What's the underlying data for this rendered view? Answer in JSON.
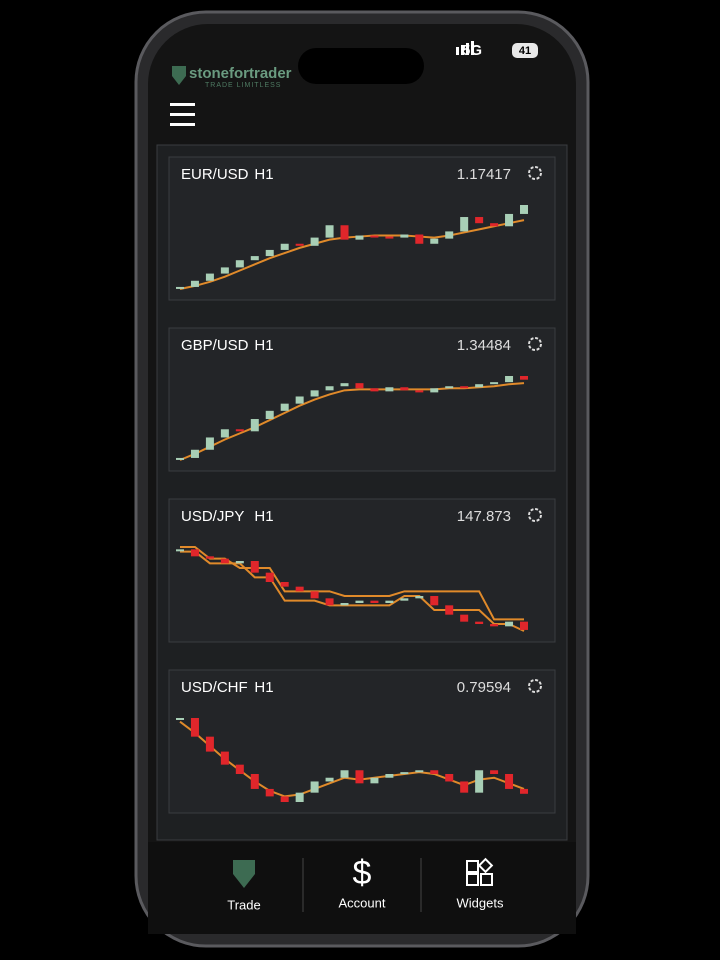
{
  "status": {
    "network": "5G",
    "battery": "41"
  },
  "header": {
    "brand": "stonefortrader",
    "tagline": "TRADE LIMITLESS"
  },
  "cards": [
    {
      "pair": "EUR/USD",
      "timeframe": "H1",
      "price": "1.17417",
      "closes": [
        1.1662,
        1.1668,
        1.1675,
        1.1681,
        1.1688,
        1.1692,
        1.1698,
        1.1704,
        1.1702,
        1.171,
        1.1722,
        1.1708,
        1.1712,
        1.1711,
        1.171,
        1.1713,
        1.1704,
        1.1709,
        1.1716,
        1.173,
        1.1724,
        1.1721,
        1.1733,
        1.17417
      ],
      "lines": [
        [
          1.166,
          1.1663,
          1.1667,
          1.1672,
          1.1678,
          1.1684,
          1.169,
          1.1695,
          1.17,
          1.1704,
          1.1708,
          1.171,
          1.1711,
          1.1712,
          1.1712,
          1.1712,
          1.1711,
          1.171,
          1.1712,
          1.1715,
          1.1718,
          1.1721,
          1.1724,
          1.1727
        ]
      ]
    },
    {
      "pair": "GBP/USD",
      "timeframe": "H1",
      "price": "1.34484",
      "closes": [
        1.3372,
        1.338,
        1.3392,
        1.34,
        1.3398,
        1.341,
        1.3418,
        1.3425,
        1.3432,
        1.3438,
        1.3442,
        1.3445,
        1.344,
        1.3437,
        1.3441,
        1.3438,
        1.3436,
        1.344,
        1.3442,
        1.3441,
        1.3444,
        1.3446,
        1.3452,
        1.34484
      ],
      "lines": [
        [
          1.337,
          1.3376,
          1.3383,
          1.339,
          1.3396,
          1.3402,
          1.3409,
          1.3416,
          1.3423,
          1.3429,
          1.3434,
          1.3438,
          1.3439,
          1.3439,
          1.3439,
          1.3439,
          1.3439,
          1.3439,
          1.344,
          1.344,
          1.3441,
          1.3442,
          1.3444,
          1.3445
        ]
      ]
    },
    {
      "pair": "USD/JPY",
      "timeframe": "H1",
      "price": "147.873",
      "closes": [
        149.6,
        149.45,
        149.4,
        149.3,
        149.35,
        149.1,
        148.9,
        148.8,
        148.7,
        148.55,
        148.4,
        148.45,
        148.5,
        148.45,
        148.5,
        148.55,
        148.6,
        148.4,
        148.2,
        148.05,
        148.0,
        147.95,
        148.05,
        147.873
      ],
      "lines": [
        [
          149.65,
          149.65,
          149.4,
          149.4,
          149.2,
          149.2,
          149.2,
          148.7,
          148.7,
          148.7,
          148.7,
          148.6,
          148.6,
          148.6,
          148.6,
          148.7,
          148.7,
          148.7,
          148.7,
          148.7,
          148.7,
          148.1,
          148.1,
          148.1
        ],
        [
          149.55,
          149.55,
          149.3,
          149.3,
          149.3,
          149.0,
          149.0,
          148.5,
          148.5,
          148.5,
          148.4,
          148.4,
          148.4,
          148.4,
          148.4,
          148.6,
          148.6,
          148.3,
          148.3,
          148.3,
          148.3,
          148.0,
          148.0,
          147.85
        ]
      ]
    },
    {
      "pair": "USD/CHF",
      "timeframe": "H1",
      "price": "0.79594",
      "closes": [
        0.8,
        0.799,
        0.7982,
        0.7975,
        0.797,
        0.7962,
        0.7958,
        0.7955,
        0.796,
        0.7966,
        0.7968,
        0.7972,
        0.7965,
        0.7968,
        0.797,
        0.7971,
        0.7972,
        0.797,
        0.7966,
        0.796,
        0.7972,
        0.797,
        0.7962,
        0.79594
      ],
      "lines": [
        [
          0.7998,
          0.7992,
          0.7985,
          0.7978,
          0.7972,
          0.7966,
          0.7961,
          0.7958,
          0.7959,
          0.7962,
          0.7965,
          0.7968,
          0.7967,
          0.7968,
          0.7969,
          0.797,
          0.7971,
          0.797,
          0.7967,
          0.7964,
          0.7967,
          0.7968,
          0.7965,
          0.7962
        ]
      ]
    }
  ],
  "nav": [
    {
      "label": "Trade"
    },
    {
      "label": "Account"
    },
    {
      "label": "Widgets"
    }
  ]
}
